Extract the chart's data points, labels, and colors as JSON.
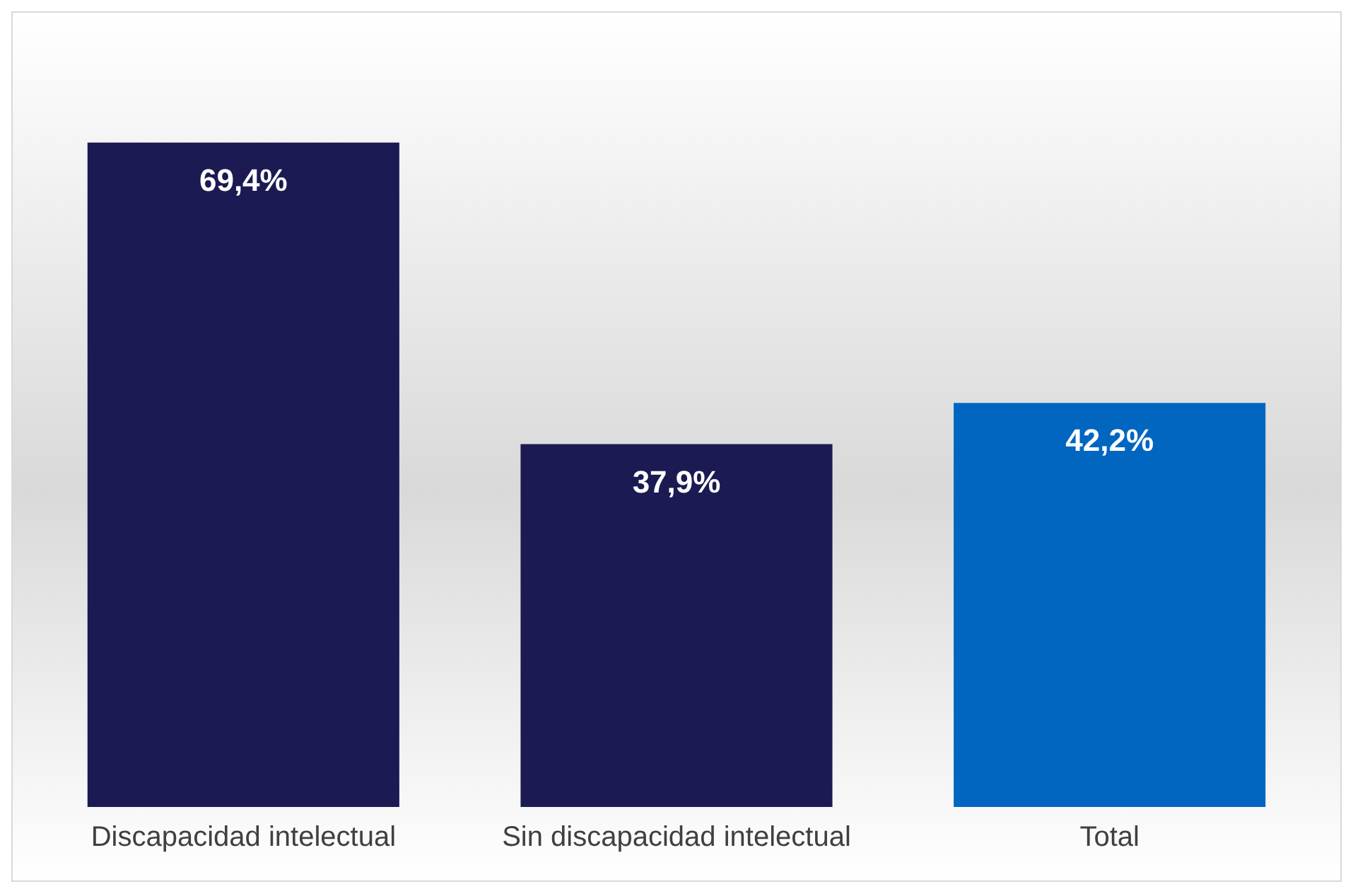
{
  "chart_data": {
    "type": "bar",
    "categories": [
      "Discapacidad intelectual",
      "Sin discapacidad intelectual",
      "Total"
    ],
    "values": [
      69.4,
      37.9,
      42.2
    ],
    "colors": [
      "#1c1a52",
      "#1c1a52",
      "#0066c0"
    ],
    "value_labels": [
      "69,4%",
      "37,9%",
      "42,2%"
    ],
    "grid": false,
    "legend": false
  }
}
